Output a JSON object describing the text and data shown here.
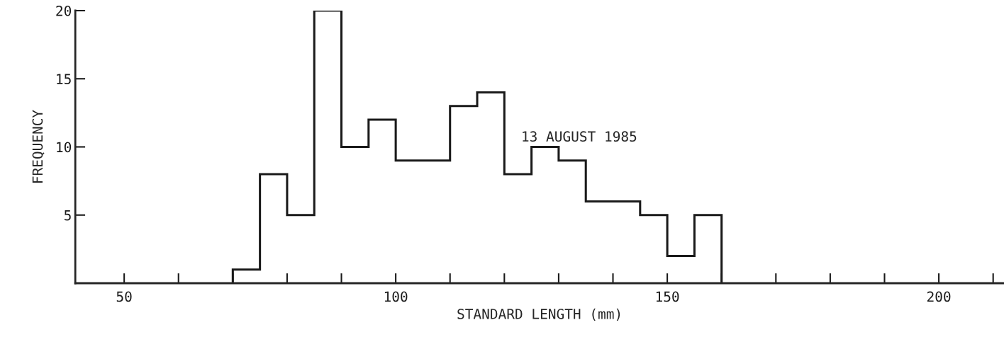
{
  "chart_data": {
    "type": "histogram",
    "xlabel": "STANDARD LENGTH (mm)",
    "ylabel": "FREQUENCY",
    "bins": [
      70,
      75,
      80,
      85,
      90,
      95,
      100,
      110,
      115,
      120,
      125,
      130,
      135,
      145,
      150,
      155,
      160
    ],
    "values": [
      1,
      8,
      5,
      20,
      10,
      12,
      9,
      13,
      14,
      8,
      10,
      9,
      6,
      5,
      2,
      5
    ],
    "color": "#1a1a1a",
    "xlim": [
      41,
      212
    ],
    "ylim": [
      0,
      20
    ],
    "xticks": [
      50,
      {
        "value": 60,
        "label": null
      },
      {
        "value": 70,
        "label": null
      },
      {
        "value": 80,
        "label": null
      },
      {
        "value": 90,
        "label": null
      },
      100,
      {
        "value": 110,
        "label": null
      },
      {
        "value": 120,
        "label": null
      },
      {
        "value": 130,
        "label": null
      },
      {
        "value": 140,
        "label": null
      },
      150,
      {
        "value": 160,
        "label": null
      },
      {
        "value": 170,
        "label": null
      },
      {
        "value": 180,
        "label": null
      },
      {
        "value": 190,
        "label": null
      },
      200,
      {
        "value": 210,
        "label": null
      }
    ],
    "yticks": [
      5,
      10,
      15,
      20
    ],
    "annotations": [
      "13 AUGUST 1985"
    ],
    "grid": false
  }
}
